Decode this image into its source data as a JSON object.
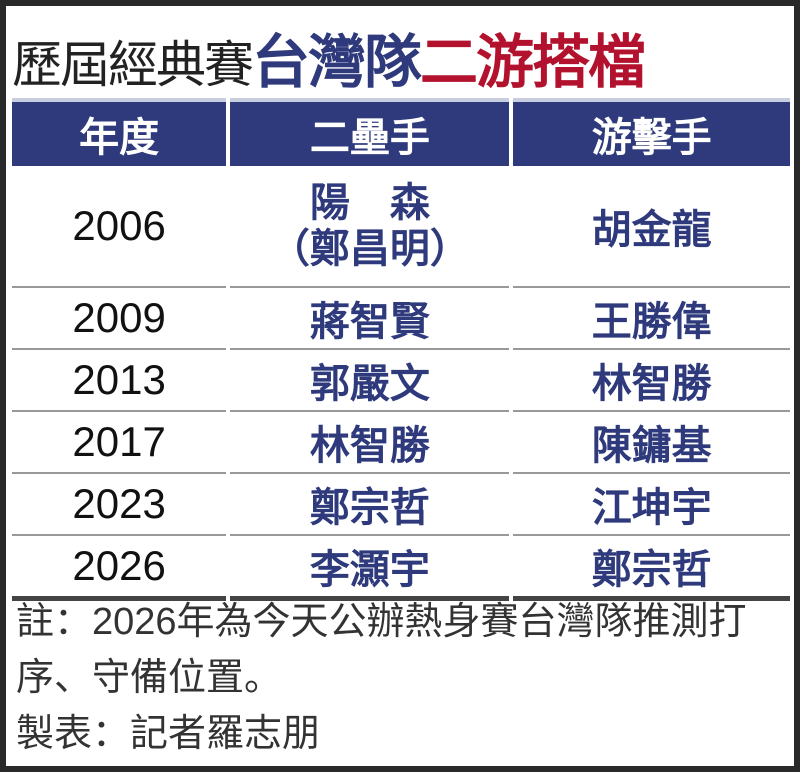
{
  "title": {
    "part1": "歷屆經典賽",
    "part2": "台灣隊",
    "part3": "二游搭檔"
  },
  "colors": {
    "navy": "#2e3a7c",
    "red": "#b3122e"
  },
  "table": {
    "headers": [
      "年度",
      "二壘手",
      "游擊手"
    ],
    "rows": [
      {
        "year": "2006",
        "second_base": "陽　森",
        "second_base_alt": "（鄭昌明）",
        "shortstop": "胡金龍"
      },
      {
        "year": "2009",
        "second_base": "蔣智賢",
        "shortstop": "王勝偉"
      },
      {
        "year": "2013",
        "second_base": "郭嚴文",
        "shortstop": "林智勝"
      },
      {
        "year": "2017",
        "second_base": "林智勝",
        "shortstop": "陳鏞基"
      },
      {
        "year": "2023",
        "second_base": "鄭宗哲",
        "shortstop": "江坤宇"
      },
      {
        "year": "2026",
        "second_base": "李灝宇",
        "shortstop": "鄭宗哲"
      }
    ]
  },
  "notes": {
    "note": "註：2026年為今天公辦熱身賽台灣隊推測打序、守備位置。",
    "credit": "製表：記者羅志朋"
  }
}
